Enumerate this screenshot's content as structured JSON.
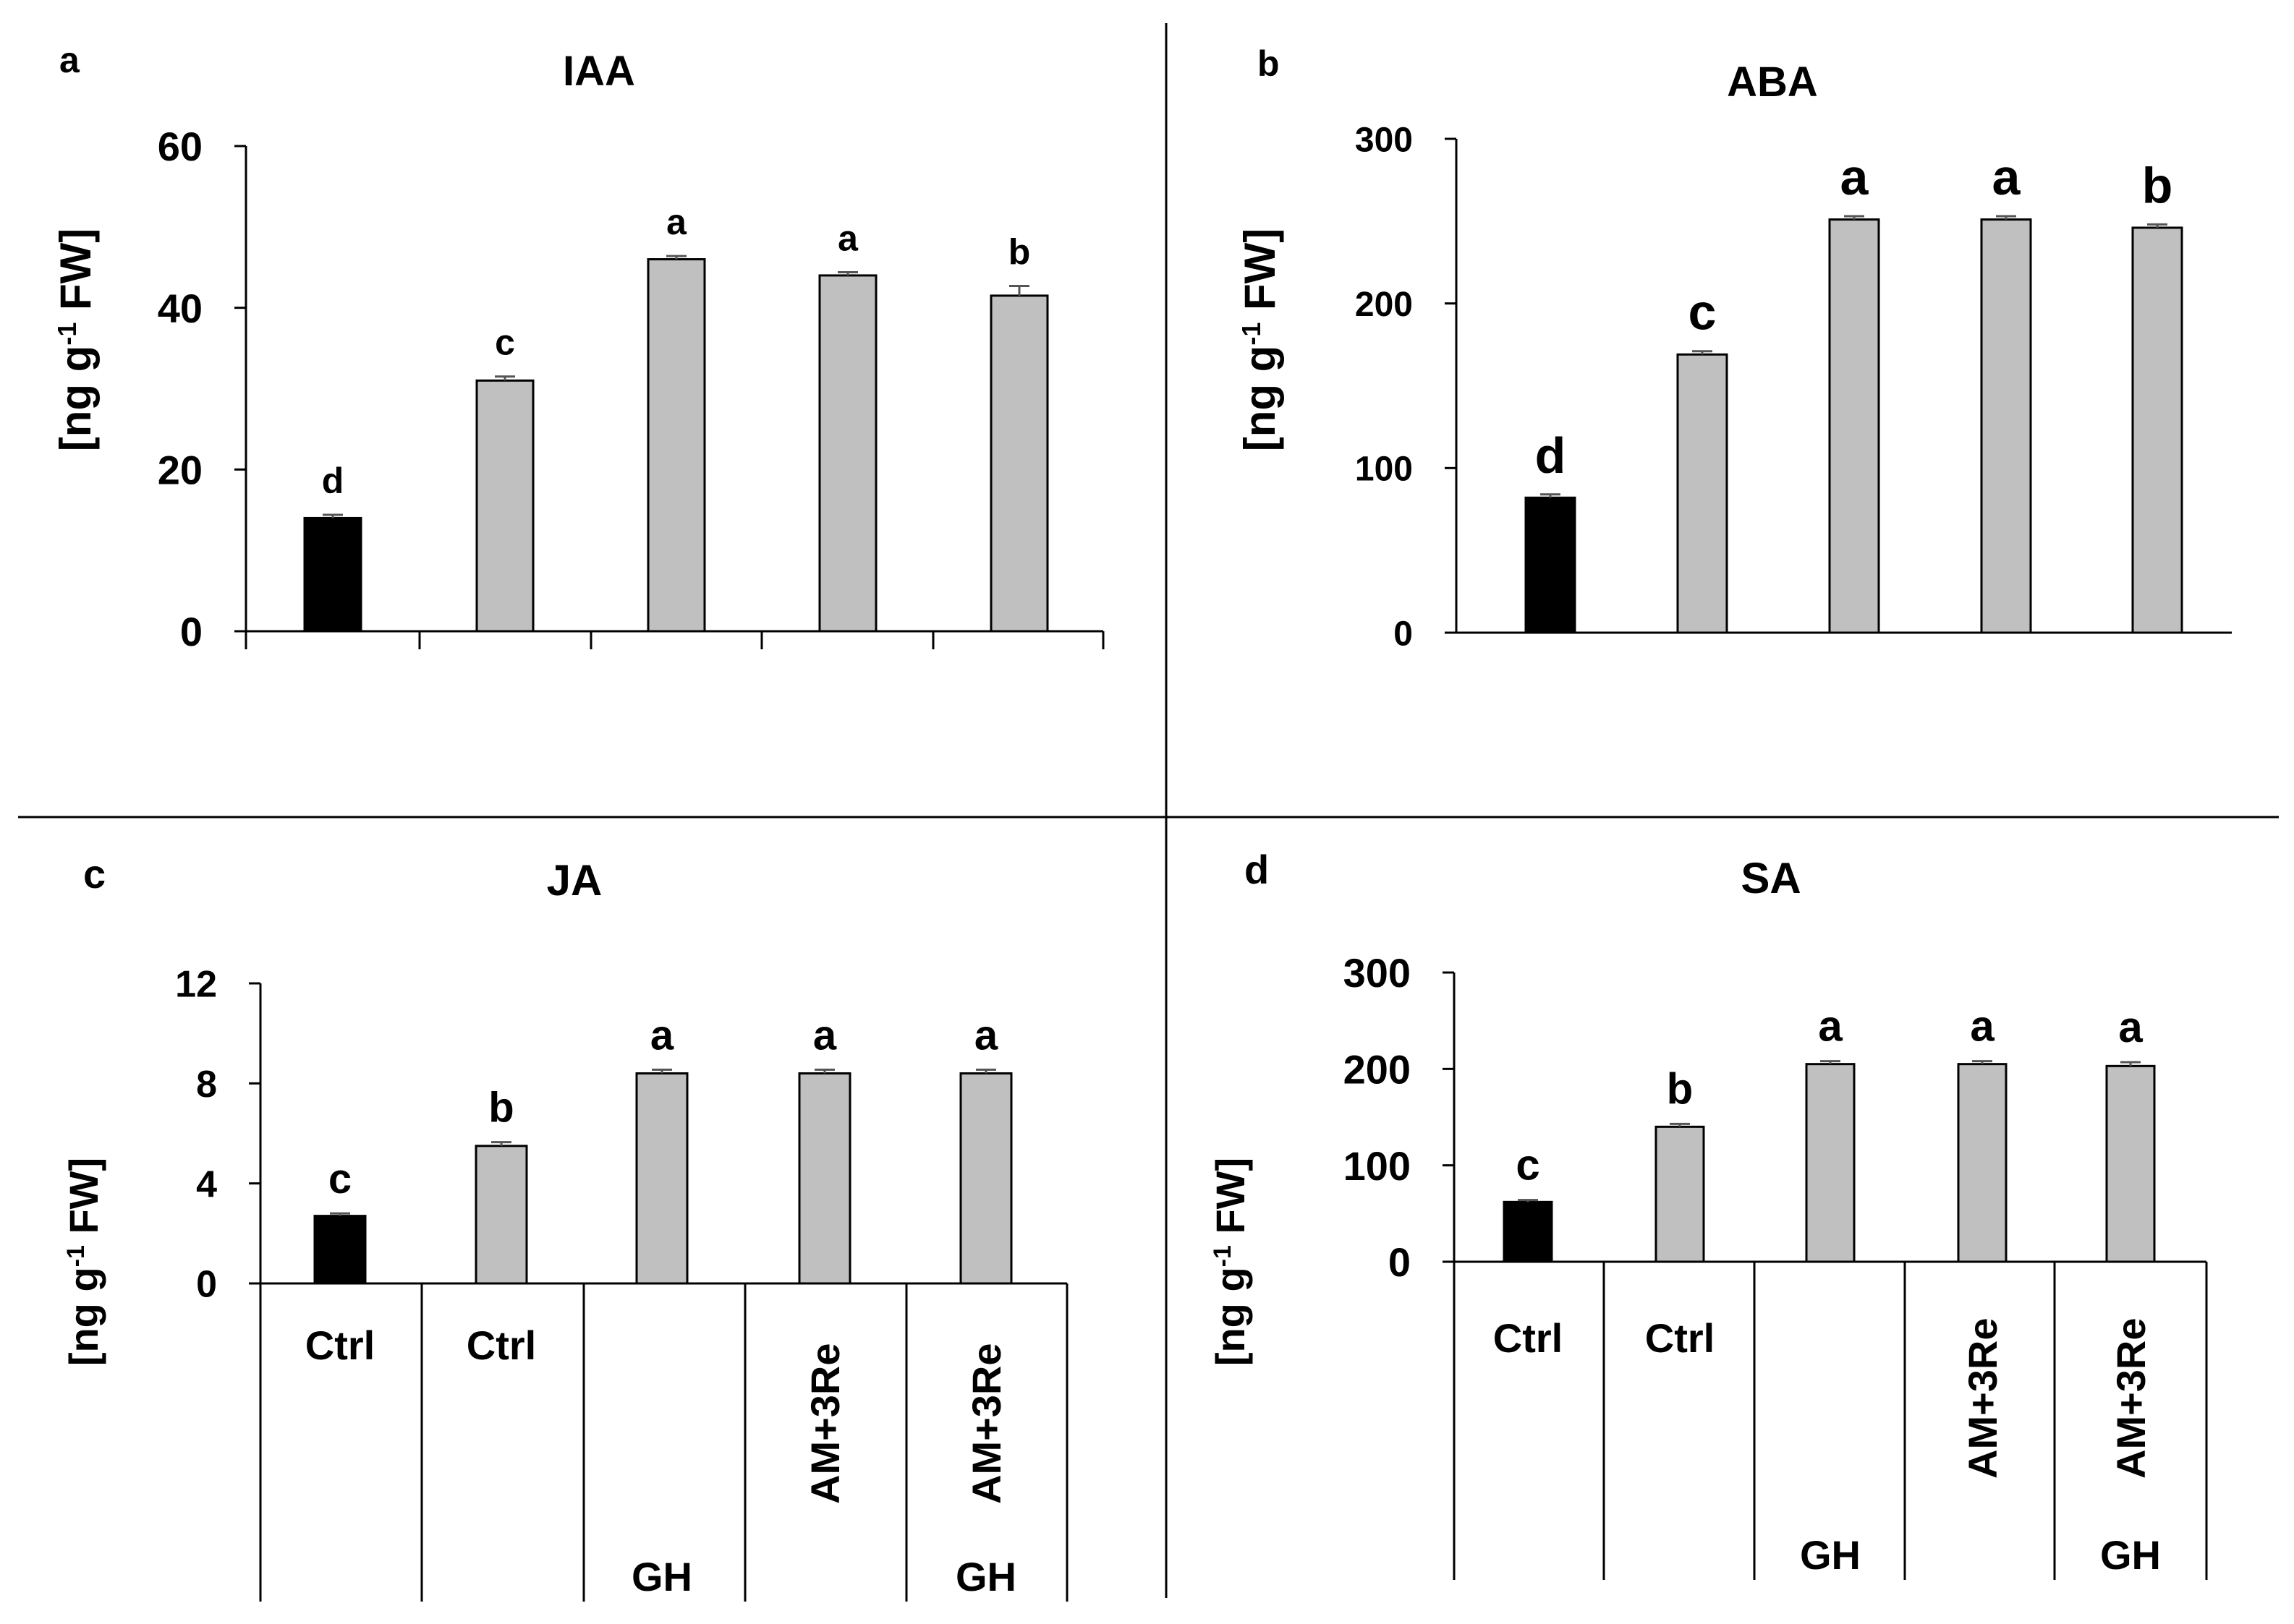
{
  "colors": {
    "control_bar": "#000000",
    "treatment_bar": "#c0c0c0",
    "axis": "#000000",
    "divider": "#000000"
  },
  "chart_data": [
    {
      "panel": "a",
      "title": "IAA",
      "type": "bar",
      "ylabel": "[ng g-1 FW]",
      "ylim": [
        0,
        60
      ],
      "yticks": [
        0,
        20,
        40,
        60
      ],
      "values": [
        14,
        31,
        46,
        44,
        41.5
      ],
      "errors": [
        0.4,
        0.5,
        0.4,
        0.4,
        1.2
      ],
      "letters": [
        "d",
        "c",
        "a",
        "a",
        "b"
      ],
      "bar_colors": [
        "#000000",
        "#c0c0c0",
        "#c0c0c0",
        "#c0c0c0",
        "#c0c0c0"
      ]
    },
    {
      "panel": "b",
      "title": "ABA",
      "type": "bar",
      "ylabel": "[ng g-1 FW]",
      "ylim": [
        0,
        300
      ],
      "yticks": [
        0,
        100,
        200,
        300
      ],
      "values": [
        82,
        169,
        251,
        251,
        246
      ],
      "errors": [
        2,
        2,
        2,
        2,
        2
      ],
      "letters": [
        "d",
        "c",
        "a",
        "a",
        "b"
      ],
      "bar_colors": [
        "#000000",
        "#c0c0c0",
        "#c0c0c0",
        "#c0c0c0",
        "#c0c0c0"
      ]
    },
    {
      "panel": "c",
      "title": "JA",
      "type": "bar",
      "ylabel": "[ng g-1 FW]",
      "ylim": [
        0,
        12
      ],
      "yticks": [
        0,
        4,
        8,
        12
      ],
      "values": [
        2.7,
        5.5,
        8.4,
        8.4,
        8.4
      ],
      "errors": [
        0.1,
        0.15,
        0.15,
        0.15,
        0.15
      ],
      "letters": [
        "c",
        "b",
        "a",
        "a",
        "a"
      ],
      "bar_colors": [
        "#000000",
        "#c0c0c0",
        "#c0c0c0",
        "#c0c0c0",
        "#c0c0c0"
      ],
      "categories": [
        {
          "top": "Ctrl",
          "rotated": "",
          "bottom": ""
        },
        {
          "top": "Ctrl",
          "rotated": "",
          "bottom": ""
        },
        {
          "top": "",
          "rotated": "",
          "bottom": "GH"
        },
        {
          "top": "",
          "rotated": "AM+3Re",
          "bottom": ""
        },
        {
          "top": "",
          "rotated": "AM+3Re",
          "bottom": "GH"
        }
      ]
    },
    {
      "panel": "d",
      "title": "SA",
      "type": "bar",
      "ylabel": "[ng g-1 FW]",
      "ylim": [
        0,
        300
      ],
      "yticks": [
        0,
        100,
        200,
        300
      ],
      "values": [
        62,
        140,
        205,
        205,
        203
      ],
      "errors": [
        2,
        3,
        3,
        3,
        4
      ],
      "letters": [
        "c",
        "b",
        "a",
        "a",
        "a"
      ],
      "bar_colors": [
        "#000000",
        "#c0c0c0",
        "#c0c0c0",
        "#c0c0c0",
        "#c0c0c0"
      ],
      "categories": [
        {
          "top": "Ctrl",
          "rotated": "",
          "bottom": ""
        },
        {
          "top": "Ctrl",
          "rotated": "",
          "bottom": ""
        },
        {
          "top": "",
          "rotated": "",
          "bottom": "GH"
        },
        {
          "top": "",
          "rotated": "AM+3Re",
          "bottom": ""
        },
        {
          "top": "",
          "rotated": "AM+3Re",
          "bottom": "GH"
        }
      ]
    }
  ]
}
